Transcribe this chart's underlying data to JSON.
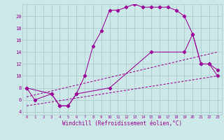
{
  "xlabel": "Windchill (Refroidissement éolien,°C)",
  "background_color": "#cce8e8",
  "grid_color": "#aacccc",
  "line_color": "#990099",
  "xlim": [
    -0.5,
    23.5
  ],
  "ylim": [
    3.5,
    22
  ],
  "xticks": [
    0,
    1,
    2,
    3,
    4,
    5,
    6,
    7,
    8,
    9,
    10,
    11,
    12,
    13,
    14,
    15,
    16,
    17,
    18,
    19,
    20,
    21,
    22,
    23
  ],
  "yticks": [
    4,
    6,
    8,
    10,
    12,
    14,
    16,
    18,
    20
  ],
  "line1_x": [
    0,
    1,
    3,
    4,
    5,
    6,
    7,
    8,
    9,
    10,
    11,
    12,
    13,
    14,
    15,
    16,
    17,
    18,
    19,
    20,
    21,
    22,
    23
  ],
  "line1_y": [
    8,
    6,
    7,
    5,
    5,
    7,
    10,
    15,
    17.5,
    21,
    21,
    21.5,
    22,
    21.5,
    21.5,
    21.5,
    21.5,
    21,
    20,
    17,
    12,
    12,
    11
  ],
  "line2_x": [
    0,
    3,
    4,
    5,
    6,
    10,
    15,
    19,
    20,
    21,
    22,
    23
  ],
  "line2_y": [
    8,
    7,
    5,
    5,
    7,
    8,
    14,
    14,
    17,
    12,
    12,
    10
  ],
  "line3_x": [
    0,
    23
  ],
  "line3_y": [
    6.5,
    14
  ],
  "line4_x": [
    0,
    23
  ],
  "line4_y": [
    5,
    10
  ]
}
